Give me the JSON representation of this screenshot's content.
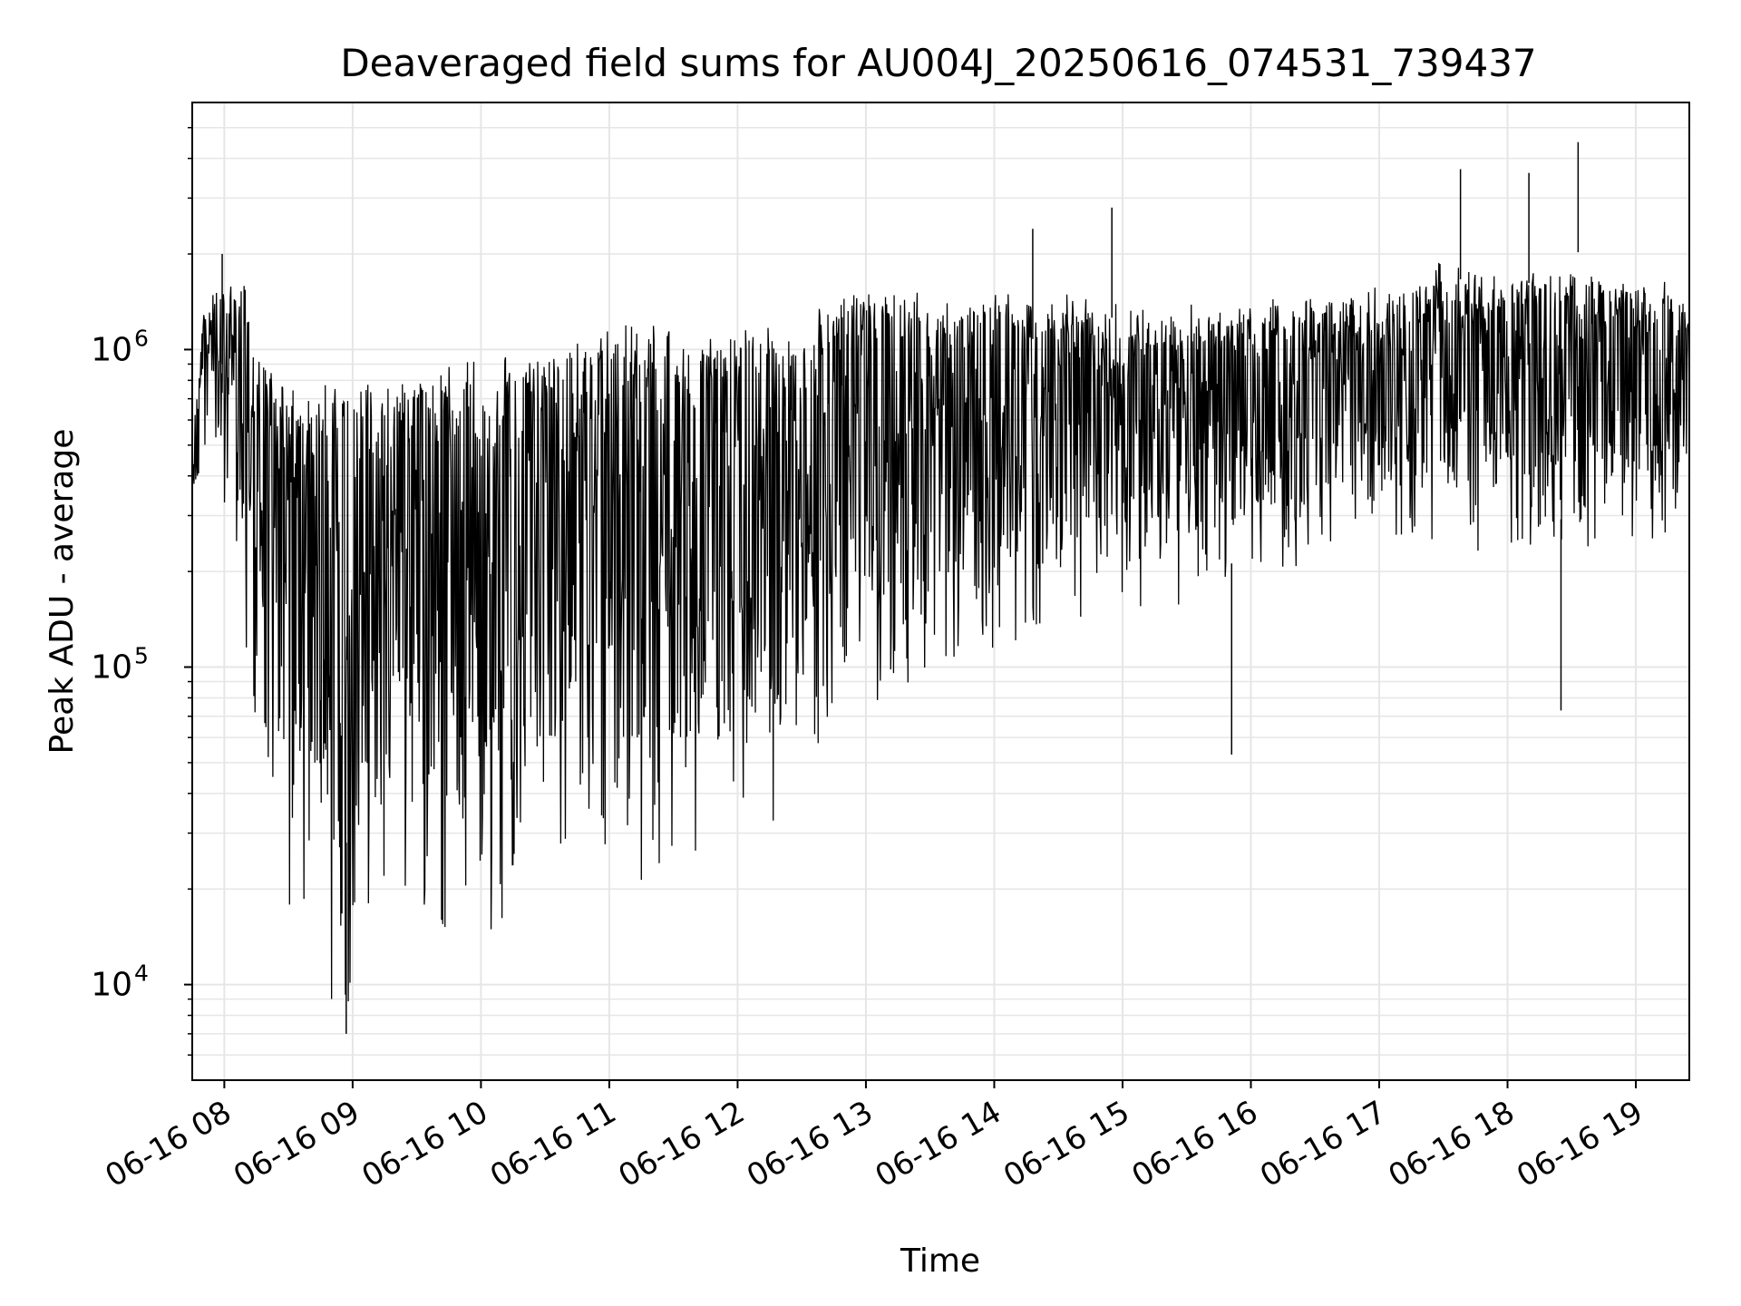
{
  "chart_data": {
    "type": "line",
    "title": "Deaveraged field sums for AU004J_20250616_074531_739437",
    "xlabel": "Time",
    "ylabel": "Peak ADU - average",
    "y_scale": "log",
    "x_range": [
      "2025-06-16 07:45",
      "2025-06-16 19:25"
    ],
    "ylim": [
      5000,
      6000000
    ],
    "grid": true,
    "line_color": "#000000",
    "grid_color": "#e6e6e6",
    "x_ticks": [
      {
        "time": "2025-06-16 08:00",
        "label": "06-16 08"
      },
      {
        "time": "2025-06-16 09:00",
        "label": "06-16 09"
      },
      {
        "time": "2025-06-16 10:00",
        "label": "06-16 10"
      },
      {
        "time": "2025-06-16 11:00",
        "label": "06-16 11"
      },
      {
        "time": "2025-06-16 12:00",
        "label": "06-16 12"
      },
      {
        "time": "2025-06-16 13:00",
        "label": "06-16 13"
      },
      {
        "time": "2025-06-16 14:00",
        "label": "06-16 14"
      },
      {
        "time": "2025-06-16 15:00",
        "label": "06-16 15"
      },
      {
        "time": "2025-06-16 16:00",
        "label": "06-16 16"
      },
      {
        "time": "2025-06-16 17:00",
        "label": "06-16 17"
      },
      {
        "time": "2025-06-16 18:00",
        "label": "06-16 18"
      },
      {
        "time": "2025-06-16 19:00",
        "label": "06-16 19"
      }
    ],
    "y_ticks": [
      {
        "value": 10000,
        "base": "10",
        "exp": "4"
      },
      {
        "value": 100000,
        "base": "10",
        "exp": "5"
      },
      {
        "value": 1000000,
        "base": "10",
        "exp": "6"
      }
    ],
    "series": [
      {
        "x": [
          "2025-06-16 07:45",
          "2025-06-16 07:50",
          "2025-06-16 07:55",
          "2025-06-16 08:00",
          "2025-06-16 08:05",
          "2025-06-16 08:10",
          "2025-06-16 08:15",
          "2025-06-16 08:20",
          "2025-06-16 08:25",
          "2025-06-16 08:30",
          "2025-06-16 08:35",
          "2025-06-16 08:40",
          "2025-06-16 08:45",
          "2025-06-16 08:50",
          "2025-06-16 08:55",
          "2025-06-16 09:00",
          "2025-06-16 09:10",
          "2025-06-16 09:20",
          "2025-06-16 09:30",
          "2025-06-16 09:40",
          "2025-06-16 09:50",
          "2025-06-16 10:00",
          "2025-06-16 10:15",
          "2025-06-16 10:30",
          "2025-06-16 10:45",
          "2025-06-16 11:00",
          "2025-06-16 11:15",
          "2025-06-16 11:30",
          "2025-06-16 11:45",
          "2025-06-16 12:00",
          "2025-06-16 12:15",
          "2025-06-16 12:30",
          "2025-06-16 12:45",
          "2025-06-16 13:00",
          "2025-06-16 13:15",
          "2025-06-16 13:30",
          "2025-06-16 13:45",
          "2025-06-16 14:00",
          "2025-06-16 14:15",
          "2025-06-16 14:30",
          "2025-06-16 14:45",
          "2025-06-16 15:00",
          "2025-06-16 15:15",
          "2025-06-16 15:30",
          "2025-06-16 15:45",
          "2025-06-16 16:00",
          "2025-06-16 16:15",
          "2025-06-16 16:30",
          "2025-06-16 16:45",
          "2025-06-16 17:00",
          "2025-06-16 17:15",
          "2025-06-16 17:30",
          "2025-06-16 17:45",
          "2025-06-16 18:00",
          "2025-06-16 18:15",
          "2025-06-16 18:30",
          "2025-06-16 18:45",
          "2025-06-16 19:00",
          "2025-06-16 19:15",
          "2025-06-16 19:25"
        ],
        "upper": [
          500000,
          1500000,
          1600000,
          1700000,
          1600000,
          1700000,
          1000000,
          900000,
          800000,
          800000,
          750000,
          750000,
          800000,
          800000,
          800000,
          800000,
          800000,
          800000,
          850000,
          900000,
          950000,
          950000,
          1000000,
          1000000,
          1100000,
          1200000,
          1200000,
          1200000,
          1200000,
          1250000,
          1200000,
          1200000,
          1500000,
          1600000,
          1600000,
          1500000,
          1500000,
          1500000,
          1500000,
          1500000,
          1500000,
          1400000,
          1300000,
          1400000,
          1400000,
          1400000,
          1500000,
          1500000,
          1500000,
          1600000,
          1600000,
          2000000,
          1800000,
          1800000,
          1800000,
          1800000,
          1800000,
          1700000,
          1700000,
          1500000
        ],
        "lower": [
          350000,
          400000,
          500000,
          300000,
          150000,
          80000,
          60000,
          40000,
          25000,
          18000,
          15000,
          12000,
          10000,
          9000,
          8000,
          9000,
          14000,
          15000,
          16000,
          15000,
          14000,
          13000,
          18000,
          25000,
          22000,
          20000,
          20000,
          22000,
          22000,
          24000,
          28000,
          45000,
          60000,
          70000,
          80000,
          90000,
          100000,
          110000,
          110000,
          130000,
          150000,
          160000,
          150000,
          150000,
          160000,
          180000,
          200000,
          220000,
          230000,
          240000,
          250000,
          250000,
          230000,
          220000,
          220000,
          230000,
          240000,
          250000,
          250000,
          260000
        ],
        "spikes_high": [
          {
            "time": "2025-06-16 07:59",
            "value": 2000000
          },
          {
            "time": "2025-06-16 14:18",
            "value": 2400000
          },
          {
            "time": "2025-06-16 14:55",
            "value": 2800000
          },
          {
            "time": "2025-06-16 17:38",
            "value": 3700000
          },
          {
            "time": "2025-06-16 18:10",
            "value": 3600000
          },
          {
            "time": "2025-06-16 18:33",
            "value": 4500000
          }
        ],
        "spikes_low": [
          {
            "time": "2025-06-16 08:57",
            "value": 7000
          },
          {
            "time": "2025-06-16 15:51",
            "value": 53000
          },
          {
            "time": "2025-06-16 18:25",
            "value": 73000
          }
        ]
      }
    ]
  }
}
